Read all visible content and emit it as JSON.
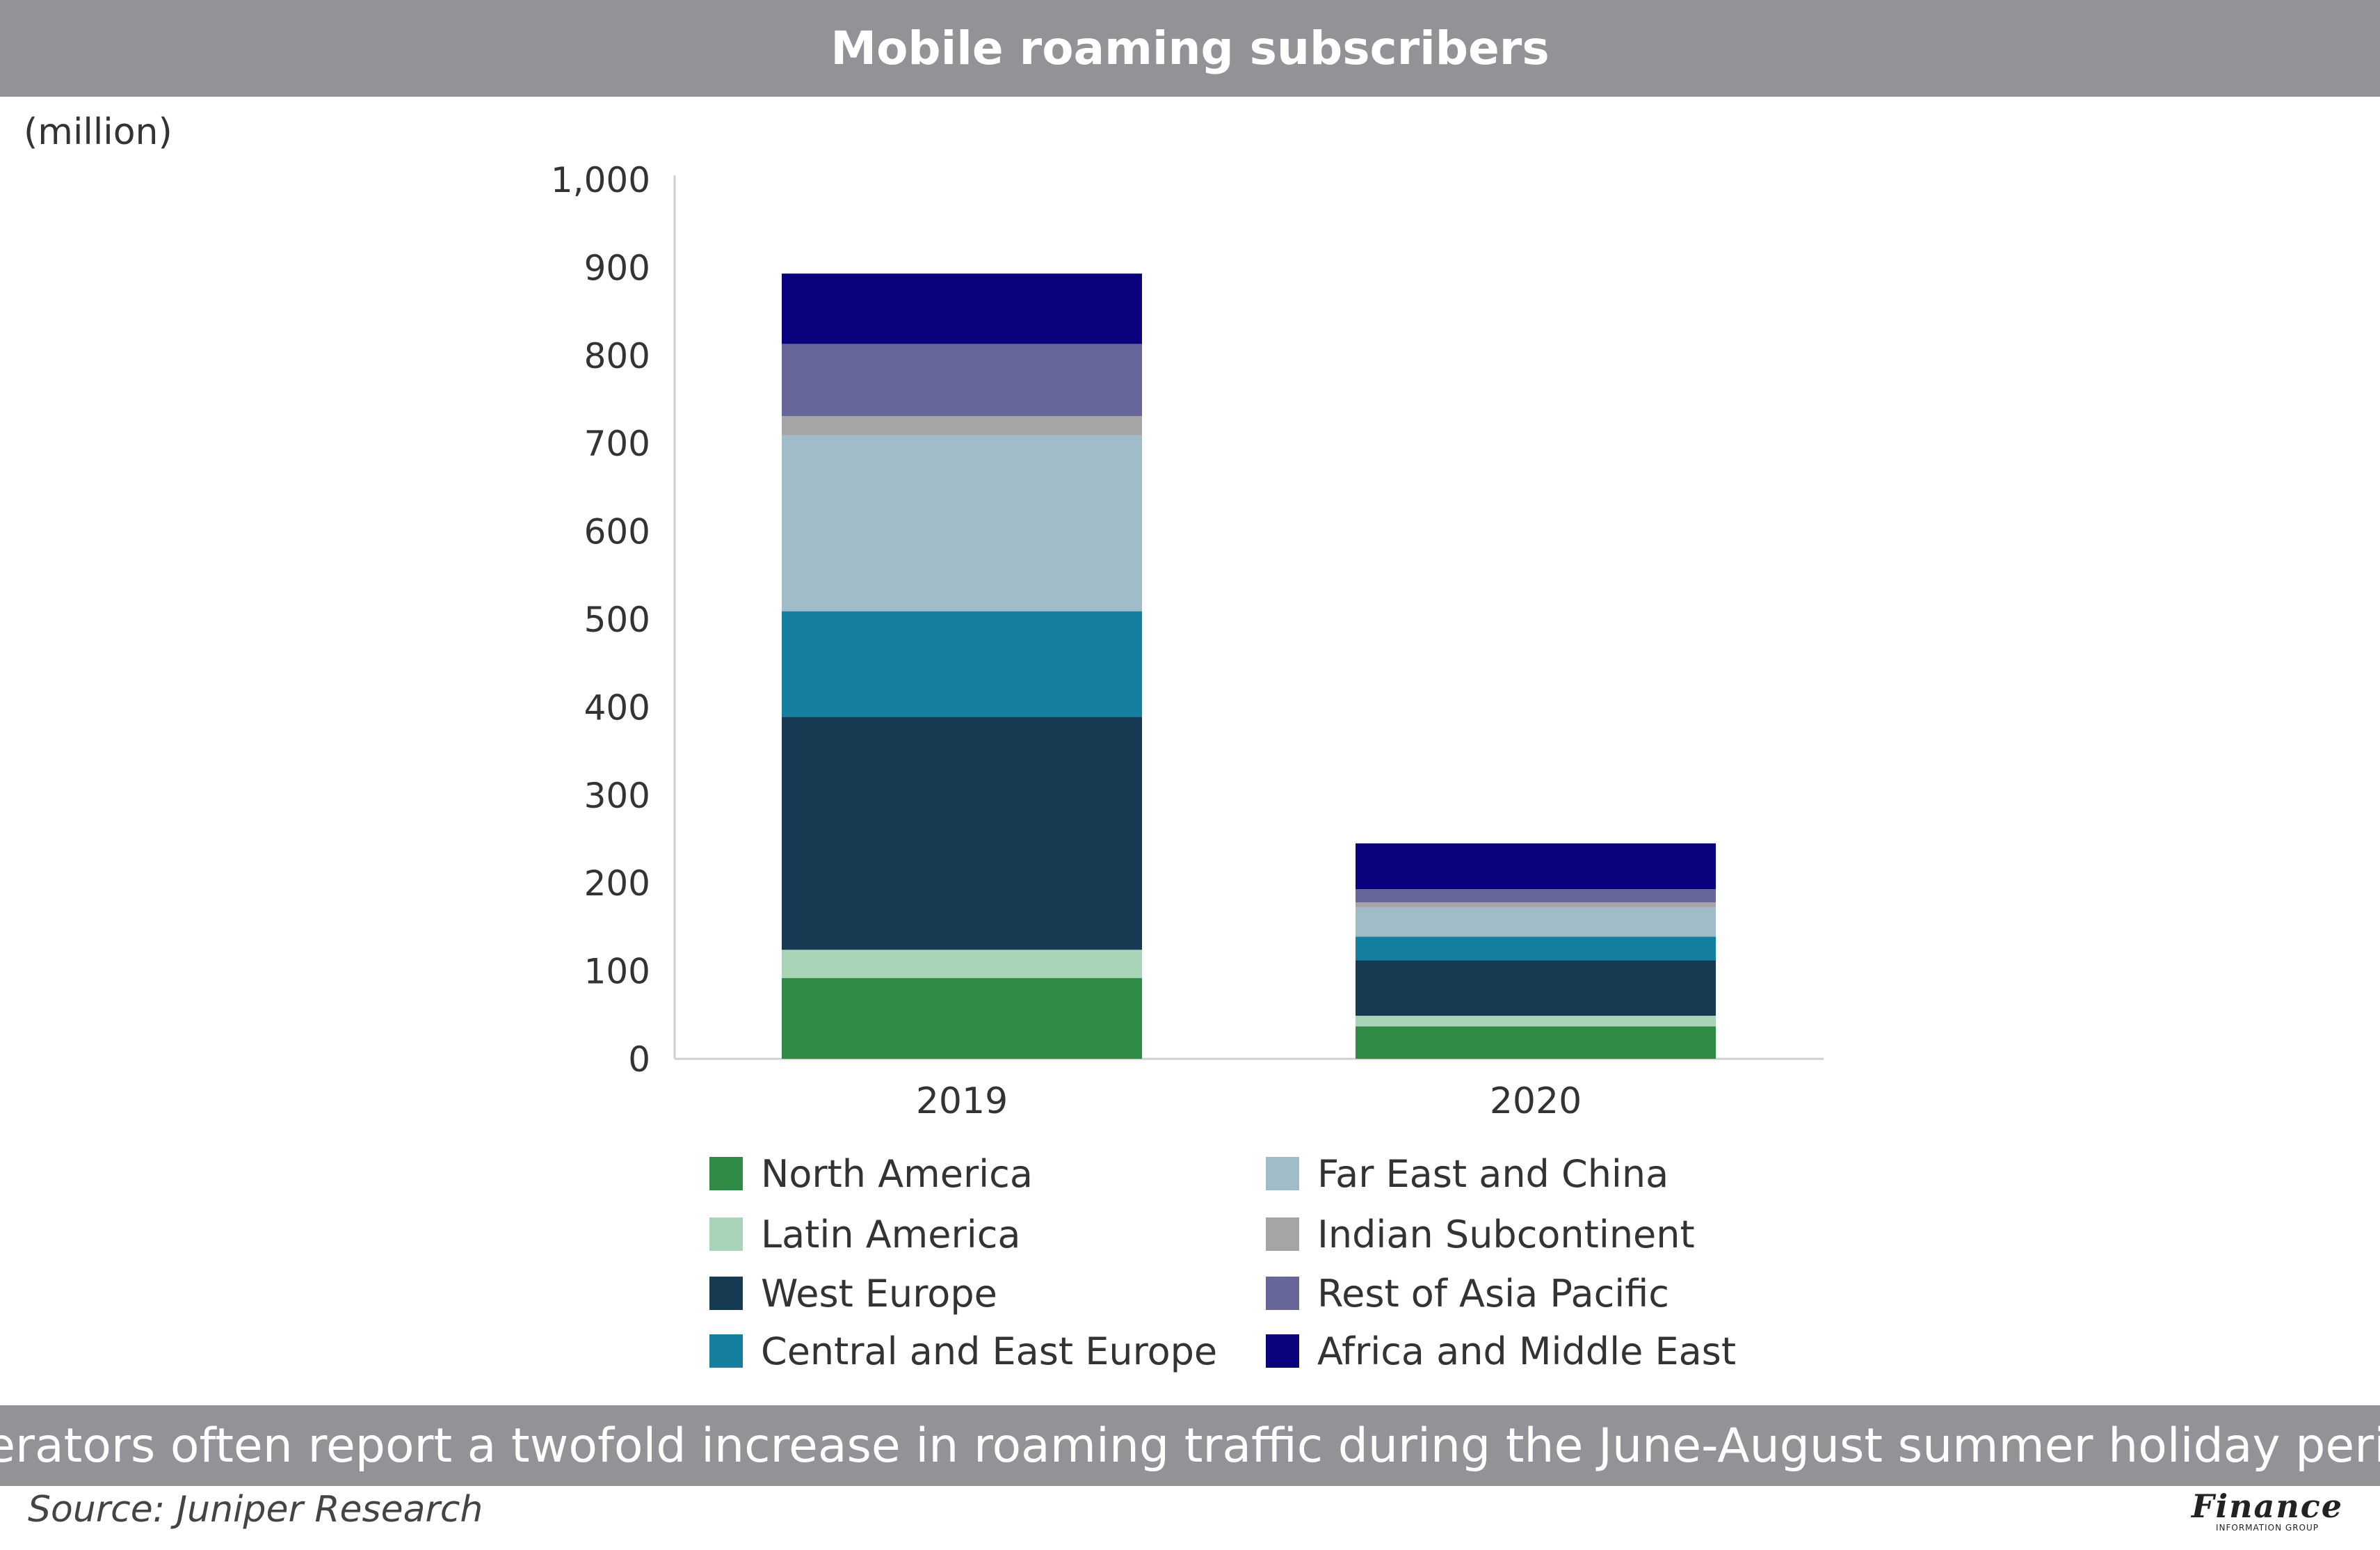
{
  "title": "Mobile roaming subscribers",
  "unit_label": "(million)",
  "caption": "Operators often report a twofold increase in roaming traffic during the June-August summer holiday period.",
  "source": "Source: Juniper Research",
  "logo": {
    "main": "Finance",
    "sub": "INFORMATION GROUP"
  },
  "colors": {
    "header_bg": "#929297",
    "axis": "#d0d0d0",
    "text": "#333333"
  },
  "chart_data": {
    "type": "bar",
    "stacked": true,
    "title": "Mobile roaming subscribers",
    "ylabel": "(million)",
    "xlabel": "",
    "ylim": [
      0,
      1000
    ],
    "yticks": [
      0,
      100,
      200,
      300,
      400,
      500,
      600,
      700,
      800,
      900,
      1000
    ],
    "ytick_labels": [
      "0",
      "100",
      "200",
      "300",
      "400",
      "500",
      "600",
      "700",
      "800",
      "900",
      "1,000"
    ],
    "categories": [
      "2019",
      "2020"
    ],
    "grid": false,
    "legend_position": "bottom",
    "series": [
      {
        "name": "North America",
        "color": "#2f8b45",
        "values": [
          92,
          37
        ]
      },
      {
        "name": "Latin America",
        "color": "#aad4b7",
        "values": [
          32,
          12
        ]
      },
      {
        "name": "West Europe",
        "color": "#163a52",
        "values": [
          265,
          63
        ]
      },
      {
        "name": "Central and East Europe",
        "color": "#147f9f",
        "values": [
          120,
          27
        ]
      },
      {
        "name": "Far East and China",
        "color": "#9fbcc8",
        "values": [
          200,
          33
        ]
      },
      {
        "name": "Indian Subcontinent",
        "color": "#a5a5a8",
        "values": [
          22,
          6
        ]
      },
      {
        "name": "Rest of Asia Pacific",
        "color": "#676699",
        "values": [
          82,
          15
        ]
      },
      {
        "name": "Africa and Middle East",
        "color": "#0a027c",
        "values": [
          80,
          52
        ]
      }
    ]
  }
}
